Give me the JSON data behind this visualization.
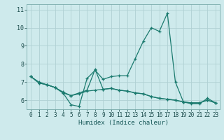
{
  "xlabel": "Humidex (Indice chaleur)",
  "ylabel": "",
  "background_color": "#ceeaec",
  "grid_color": "#b0d0d3",
  "line_color": "#1a7a6e",
  "xlim": [
    -0.5,
    23.5
  ],
  "ylim": [
    5.5,
    11.3
  ],
  "yticks": [
    6,
    7,
    8,
    9,
    10,
    11
  ],
  "xticks": [
    0,
    1,
    2,
    3,
    4,
    5,
    6,
    7,
    8,
    9,
    10,
    11,
    12,
    13,
    14,
    15,
    16,
    17,
    18,
    19,
    20,
    21,
    22,
    23
  ],
  "series": [
    [
      7.3,
      7.0,
      6.85,
      6.7,
      6.4,
      6.25,
      6.35,
      6.5,
      6.55,
      6.6,
      6.65,
      6.55,
      6.5,
      6.4,
      6.35,
      6.2,
      6.1,
      6.05,
      6.0,
      5.9,
      5.85,
      5.85,
      6.0,
      5.85
    ],
    [
      7.3,
      6.95,
      6.85,
      6.7,
      6.4,
      5.75,
      5.65,
      7.2,
      7.65,
      7.15,
      7.3,
      7.35,
      7.35,
      8.3,
      9.25,
      10.0,
      9.8,
      10.8,
      7.0,
      5.9,
      5.8,
      5.8,
      6.1,
      5.85
    ],
    [
      7.3,
      6.95,
      6.85,
      6.7,
      6.45,
      6.25,
      6.4,
      6.55,
      7.7,
      6.6,
      6.65,
      6.55,
      6.5,
      6.4,
      6.35,
      6.2,
      6.1,
      6.05,
      6.0,
      5.9,
      5.85,
      5.85,
      6.0,
      5.85
    ]
  ]
}
